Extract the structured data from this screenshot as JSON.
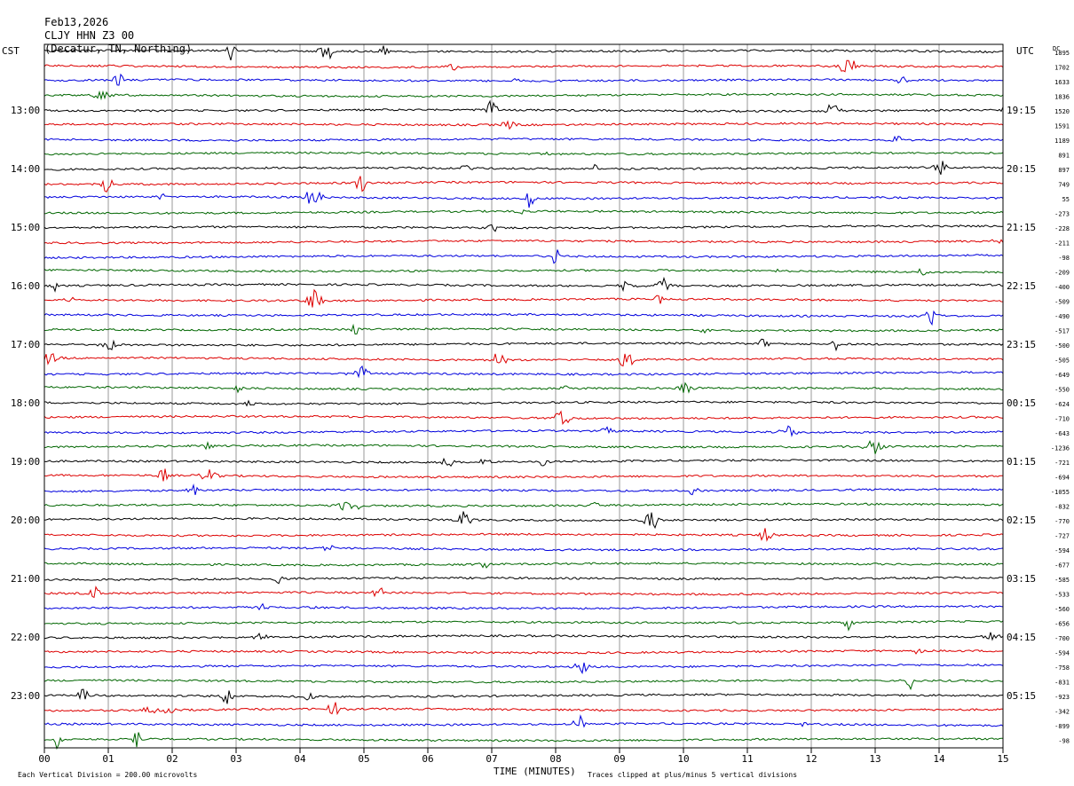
{
  "header": {
    "date": "Feb13,2026",
    "station": "CLJY HHN Z3 00",
    "location": "(Decatur, TN, Northing)"
  },
  "axes": {
    "left_zone": "CST",
    "right_zone": "UTC",
    "dc_label": "DC",
    "xlabel": "TIME (MINUTES)",
    "footer_left": "Each Vertical Division = 200.00 microvolts",
    "footer_right": "Traces clipped at plus/minus 5 vertical divisions"
  },
  "colors": {
    "cycle": [
      "#000000",
      "#dd0000",
      "#0000dd",
      "#006600"
    ],
    "grid": "#999999"
  },
  "chart_data": {
    "type": "line",
    "title": "",
    "x_ticks": [
      "00",
      "01",
      "02",
      "03",
      "04",
      "05",
      "06",
      "07",
      "08",
      "09",
      "10",
      "11",
      "12",
      "13",
      "14",
      "15"
    ],
    "xlim": [
      0,
      15
    ],
    "left_hour_labels": [
      "13:00",
      "14:00",
      "15:00",
      "16:00",
      "17:00",
      "18:00",
      "19:00",
      "20:00",
      "21:00",
      "22:00",
      "23:00"
    ],
    "right_hour_labels": [
      "19:15",
      "20:15",
      "21:15",
      "22:15",
      "23:15",
      "00:15",
      "01:15",
      "02:15",
      "03:15",
      "04:15",
      "05:15"
    ],
    "dc_offsets": [
      "1895",
      "1702",
      "1633",
      "1836",
      "1520",
      "1591",
      "1189",
      "891",
      "897",
      "749",
      "55",
      "-273",
      "-228",
      "-211",
      "-98",
      "-209",
      "-400",
      "-509",
      "-490",
      "-517",
      "-500",
      "-505",
      "-649",
      "-550",
      "-624",
      "-710",
      "-643",
      "-1236",
      "-721",
      "-694",
      "-1055",
      "-832",
      "-770",
      "-727",
      "-594",
      "-677",
      "-585",
      "-533",
      "-560",
      "-656",
      "-700",
      "-594",
      "-758",
      "-831",
      "-923",
      "-342",
      "-899",
      "-98"
    ],
    "trace_count": 48,
    "minutes_per_trace": 15,
    "units": "microvolts",
    "vertical_division_uv": 200,
    "clip_divisions": 5
  }
}
